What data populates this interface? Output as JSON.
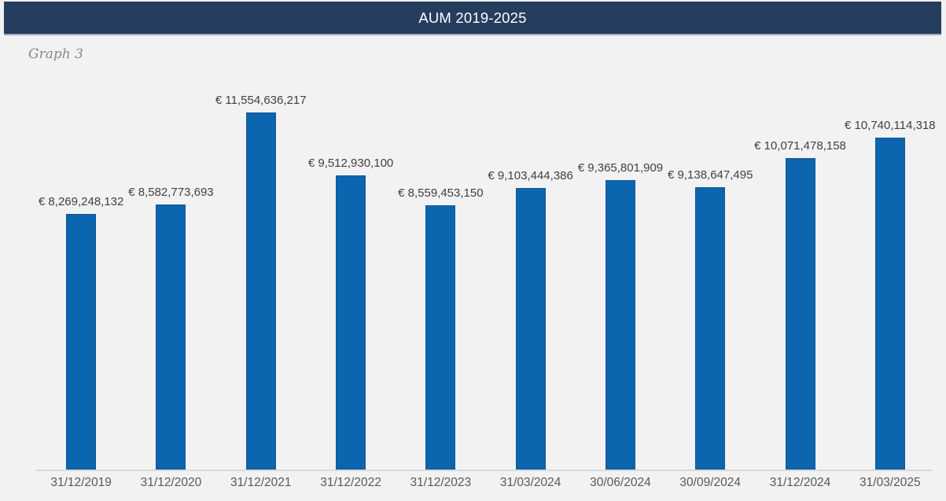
{
  "header": {
    "title": "AUM 2019-2025",
    "bg_color": "#253D5E",
    "text_color": "#FFFFFF"
  },
  "caption": "Graph 3",
  "chart_data": {
    "type": "bar",
    "title": "AUM 2019-2025",
    "currency": "EUR",
    "categories": [
      "31/12/2019",
      "31/12/2020",
      "31/12/2021",
      "31/12/2022",
      "31/12/2023",
      "31/03/2024",
      "30/06/2024",
      "30/09/2024",
      "31/12/2024",
      "31/03/2025"
    ],
    "values": [
      8269248132,
      8582773693,
      11554636217,
      9512930100,
      8559453150,
      9103444386,
      9365801909,
      9138647495,
      10071478158,
      10740114318
    ],
    "data_labels": [
      "€ 8,269,248,132",
      "€ 8,582,773,693",
      "€ 11,554,636,217",
      "€ 9,512,930,100",
      "€ 8,559,453,150",
      "€ 9,103,444,386",
      "€ 9,365,801,909",
      "€ 9,138,647,495",
      "€ 10,071,478,158",
      "€ 10,740,114,318"
    ],
    "xlabel": "",
    "ylabel": "",
    "ylim": [
      0,
      11554636217
    ],
    "grid": false,
    "legend": "none",
    "bar_color": "#0B65AF",
    "axis_line_color": "#DADADA",
    "background_color": "#F2F2F2"
  }
}
